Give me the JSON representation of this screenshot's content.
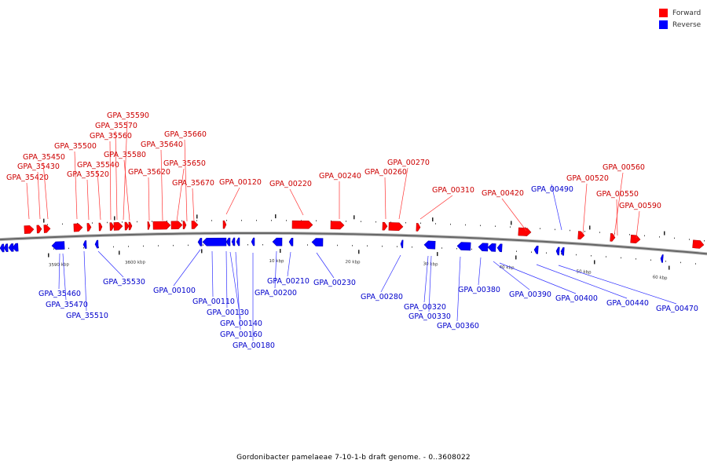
{
  "legend": {
    "forward_label": "Forward",
    "reverse_label": "Reverse",
    "forward_color": "#ff0000",
    "reverse_color": "#0000ff"
  },
  "caption": "Gordonibacter pamelaeae 7-10-1-b draft genome. - 0..3608022",
  "tick_labels": [
    "3590 kbp",
    "3600 kbp",
    "10 kbp",
    "20 kbp",
    "30 kbp",
    "40 kbp",
    "50 kbp",
    "60 kbp"
  ],
  "forward_labels": [
    "GPA_35420",
    "GPA_35430",
    "GPA_35450",
    "GPA_35500",
    "GPA_35520",
    "GPA_35540",
    "GPA_35560",
    "GPA_35570",
    "GPA_35590",
    "GPA_35580",
    "GPA_35620",
    "GPA_35640",
    "GPA_35650",
    "GPA_35660",
    "GPA_35670",
    "GPA_00120",
    "GPA_00220",
    "GPA_00240",
    "GPA_00260",
    "GPA_00270",
    "GPA_00310",
    "GPA_00420",
    "GPA_00520",
    "GPA_00560",
    "GPA_00550",
    "GPA_00590"
  ],
  "reverse_labels": [
    "GPA_35460",
    "GPA_35470",
    "GPA_35510",
    "GPA_35530",
    "GPA_00100",
    "GPA_00110",
    "GPA_00130",
    "GPA_00140",
    "GPA_00160",
    "GPA_00180",
    "GPA_00200",
    "GPA_00210",
    "GPA_00230",
    "GPA_00280",
    "GPA_00320",
    "GPA_00330",
    "GPA_00360",
    "GPA_00380",
    "GPA_00390",
    "GPA_00400",
    "GPA_00440",
    "GPA_00470",
    "GPA_00490"
  ]
}
